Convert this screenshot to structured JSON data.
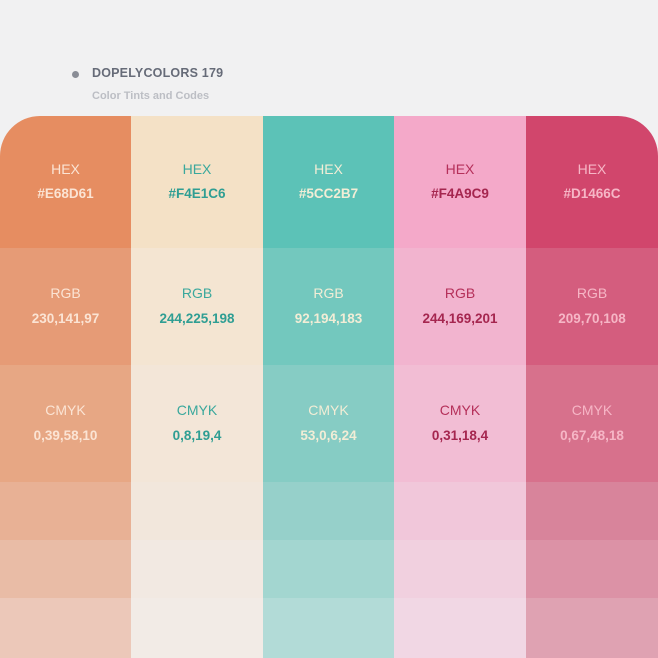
{
  "header": {
    "title": "DOPELYCOLORS 179",
    "subtitle": "Color Tints and Codes"
  },
  "labels": {
    "hex": "HEX",
    "rgb": "RGB",
    "cmyk": "CMYK"
  },
  "swatches": [
    {
      "hex": "#E68D61",
      "rgb": "230,141,97",
      "cmyk": "0,39,58,10",
      "label_color": "#fbe4d4",
      "value_color": "#fbe4d4",
      "tints": [
        "#e68d61",
        "#e69b76",
        "#e7a784",
        "#e8b195",
        "#e9bca6",
        "#ecc8b9"
      ]
    },
    {
      "hex": "#F4E1C6",
      "rgb": "244,225,198",
      "cmyk": "0,8,19,4",
      "label_color": "#3aa89c",
      "value_color": "#2f9e93",
      "tints": [
        "#f4e1c6",
        "#f4e5d2",
        "#f3e6d8",
        "#f2e7dc",
        "#f2e9e2",
        "#f2ebe6"
      ]
    },
    {
      "hex": "#5CC2B7",
      "rgb": "92,194,183",
      "cmyk": "53,0,6,24",
      "label_color": "#f2edd6",
      "value_color": "#f2edd6",
      "tints": [
        "#5cc2b7",
        "#73c8be",
        "#86ccc4",
        "#96d0ca",
        "#a3d6d0",
        "#b2dbd7"
      ]
    },
    {
      "hex": "#F4A9C9",
      "rgb": "244,169,201",
      "cmyk": "0,31,18,4",
      "label_color": "#b5305a",
      "value_color": "#a5264f",
      "tints": [
        "#f4a9c9",
        "#f2b4cf",
        "#f2bdd4",
        "#f1c7da",
        "#f1d0df",
        "#f1d7e4"
      ]
    },
    {
      "hex": "#D1466C",
      "rgb": "209,70,108",
      "cmyk": "0,67,48,18",
      "label_color": "#f6b6c6",
      "value_color": "#f6b6c6",
      "tints": [
        "#d1466c",
        "#d45d7e",
        "#d7718c",
        "#d8849b",
        "#dc92a6",
        "#dfa2b2"
      ]
    }
  ]
}
